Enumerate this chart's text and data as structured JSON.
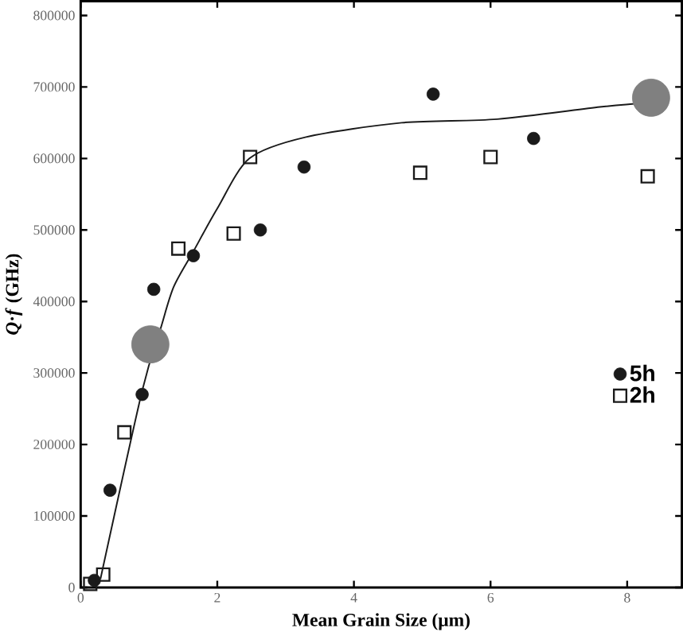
{
  "chart_data": {
    "type": "scatter",
    "xlabel": "Mean Grain Size (μm)",
    "ylabel": "*Q*·*f* (GHz)",
    "xlim": [
      0,
      8.8
    ],
    "xticks": [
      0,
      2,
      4,
      6,
      8
    ],
    "ylim": [
      0,
      820000
    ],
    "yticks": [
      0,
      100000,
      200000,
      300000,
      400000,
      500000,
      600000,
      700000,
      800000
    ],
    "legend": "bottom right",
    "grid": false,
    "series": [
      {
        "name": "5h",
        "marker": "circle",
        "color": "#1a1a1a",
        "x": [
          0.2,
          0.43,
          0.9,
          1.07,
          1.65,
          2.63,
          3.27,
          5.16,
          6.63
        ],
        "values": [
          10000,
          136000,
          270000,
          417000,
          464000,
          500000,
          588000,
          690000,
          628000
        ]
      },
      {
        "name": "2h",
        "marker": "square",
        "color": "#1a1a1a",
        "x": [
          0.14,
          0.33,
          0.64,
          1.43,
          2.24,
          2.48,
          4.97,
          6.0,
          8.3
        ],
        "values": [
          5000,
          18000,
          217000,
          474000,
          495000,
          602000,
          580000,
          602000,
          575000
        ]
      },
      {
        "type": "line",
        "marker": "none",
        "color": "#1a1a1a",
        "x": [
          0.29,
          0.9,
          1.17,
          1.36,
          1.65,
          2.0,
          2.47,
          3.3,
          4.7,
          6.1,
          7.6,
          8.3
        ],
        "values": [
          12000,
          275000,
          362000,
          420000,
          470000,
          530000,
          600000,
          630000,
          650000,
          655000,
          672000,
          678000
        ]
      },
      {
        "marker": "circle",
        "color": "#808080",
        "x": [
          1.02,
          8.35
        ],
        "values": [
          340000,
          685000
        ]
      }
    ]
  }
}
